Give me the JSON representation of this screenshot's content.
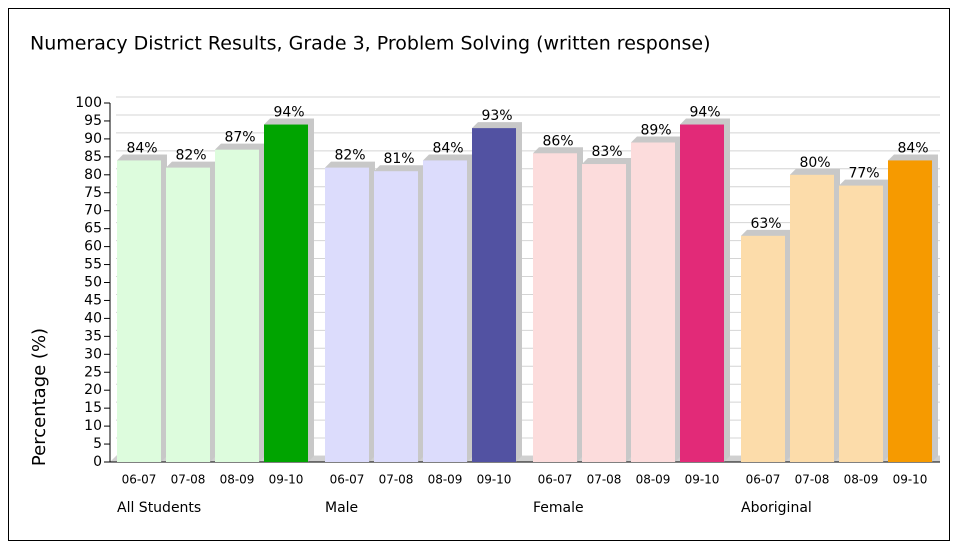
{
  "chart_data": {
    "type": "grouped_bar",
    "title": "Numeracy District Results, Grade 3, Problem Solving (written response)",
    "y_label": "Percentage (%)",
    "ylim": [
      0,
      100
    ],
    "yticks": [
      0,
      5,
      10,
      15,
      20,
      25,
      30,
      35,
      40,
      45,
      50,
      55,
      60,
      65,
      70,
      75,
      80,
      85,
      90,
      95,
      100
    ],
    "grid": true,
    "groups": [
      {
        "name": "All Students",
        "categories": [
          "06-07",
          "07-08",
          "08-09",
          "09-10"
        ],
        "values": [
          84,
          82,
          87,
          94
        ],
        "value_labels": [
          "84%",
          "82%",
          "87%",
          "94%"
        ],
        "colors": [
          "#ddfcdd",
          "#ddfcdd",
          "#ddfcdd",
          "#00a400"
        ]
      },
      {
        "name": "Male",
        "categories": [
          "06-07",
          "07-08",
          "08-09",
          "09-10"
        ],
        "values": [
          82,
          81,
          84,
          93
        ],
        "value_labels": [
          "82%",
          "81%",
          "84%",
          "93%"
        ],
        "colors": [
          "#dcdcfc",
          "#dcdcfc",
          "#dcdcfc",
          "#5252a2"
        ]
      },
      {
        "name": "Female",
        "categories": [
          "06-07",
          "07-08",
          "08-09",
          "09-10"
        ],
        "values": [
          86,
          83,
          89,
          94
        ],
        "value_labels": [
          "86%",
          "83%",
          "89%",
          "94%"
        ],
        "colors": [
          "#fcdcdc",
          "#fcdcdc",
          "#fcdcdc",
          "#e22a78"
        ]
      },
      {
        "name": "Aboriginal",
        "categories": [
          "06-07",
          "07-08",
          "08-09",
          "09-10"
        ],
        "values": [
          63,
          80,
          77,
          84
        ],
        "value_labels": [
          "63%",
          "80%",
          "77%",
          "84%"
        ],
        "colors": [
          "#fcdcaa",
          "#fcdcaa",
          "#fcdcaa",
          "#f69a00"
        ]
      }
    ]
  }
}
